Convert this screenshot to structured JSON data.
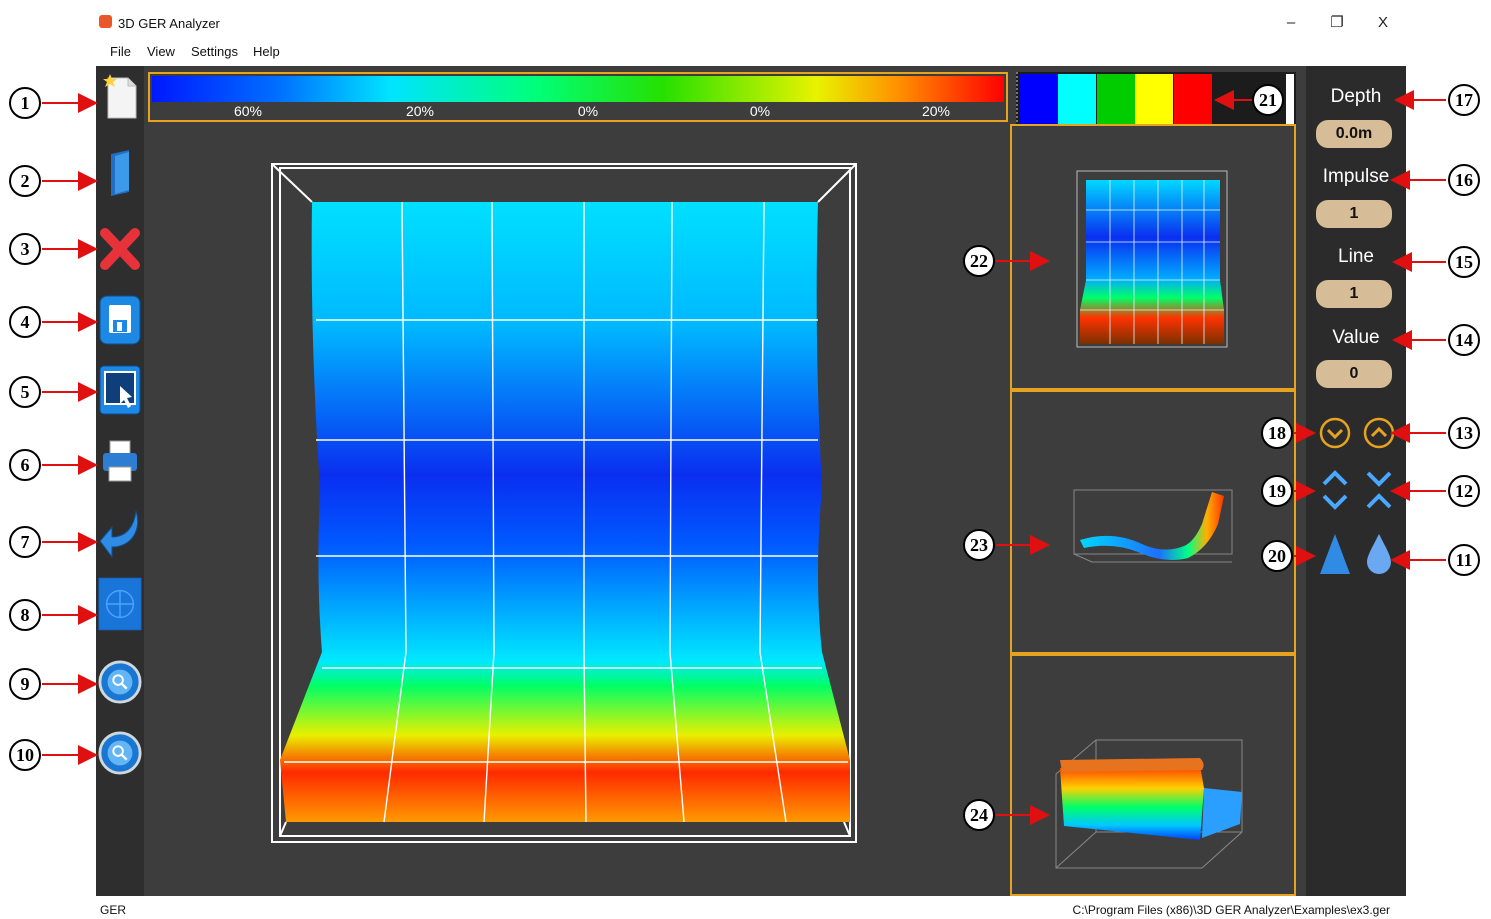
{
  "window": {
    "title": "3D GER Analyzer",
    "controls": {
      "minimize": "–",
      "restore": "❐",
      "close": "X"
    }
  },
  "menu": [
    "File",
    "View",
    "Settings",
    "Help"
  ],
  "toolbar": [
    "new-file-icon",
    "open-file-icon",
    "delete-icon",
    "save-icon",
    "select-area-icon",
    "print-icon",
    "undo-icon",
    "grid-icon",
    "zoom-reset-icon",
    "zoom-icon"
  ],
  "color_scale": {
    "labels": [
      "60%",
      "20%",
      "0%",
      "0%",
      "20%"
    ]
  },
  "palette": {
    "swatches": [
      "#0000ff",
      "#00ffff",
      "#00cc00",
      "#ffff00",
      "#ff0000"
    ]
  },
  "side": {
    "depth": {
      "label": "Depth",
      "value": "0.0m"
    },
    "impulse": {
      "label": "Impulse",
      "value": "1"
    },
    "line": {
      "label": "Line",
      "value": "1"
    },
    "value": {
      "label": "Value",
      "value": "0"
    }
  },
  "callouts": [
    "1",
    "2",
    "3",
    "4",
    "5",
    "6",
    "7",
    "8",
    "9",
    "10",
    "11",
    "12",
    "13",
    "14",
    "15",
    "16",
    "17",
    "18",
    "19",
    "20",
    "21",
    "22",
    "23",
    "24"
  ],
  "status": {
    "left": "GER",
    "right": "C:\\Program Files (x86)\\3D GER Analyzer\\Examples\\ex3.ger"
  }
}
